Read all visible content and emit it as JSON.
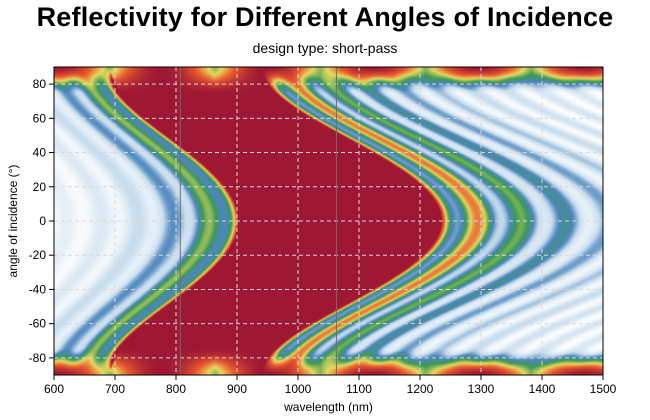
{
  "chart_data": {
    "type": "heatmap",
    "title": "Reflectivity for Different Angles of Incidence",
    "subtitle": "design type: short-pass",
    "xlabel": "wavelength (nm)",
    "ylabel": "angle of incidence (°)",
    "xlim": [
      600,
      1500
    ],
    "ylim": [
      -90,
      90
    ],
    "xticks": [
      600,
      700,
      800,
      900,
      1000,
      1100,
      1200,
      1300,
      1400,
      1500
    ],
    "yticks": [
      80,
      60,
      40,
      20,
      0,
      -20,
      -40,
      -60,
      -80
    ],
    "grid": true,
    "colormap": "white-blue-green-yellow-red",
    "colors": {
      "low": "#ffffff",
      "blue": "#4d86bd",
      "green": "#3c9a56",
      "yellow": "#e8d85e",
      "orange": "#e8582e",
      "high": "#9e1834"
    },
    "features": {
      "high_reflection_band_edge_at_normal_nm": [
        910,
        1225
      ],
      "edge_secondary_ridges_at_normal_nm": [
        855,
        1255,
        1305,
        1365
      ],
      "vertical_reference_lines_nm": [
        807,
        1063
      ]
    }
  }
}
